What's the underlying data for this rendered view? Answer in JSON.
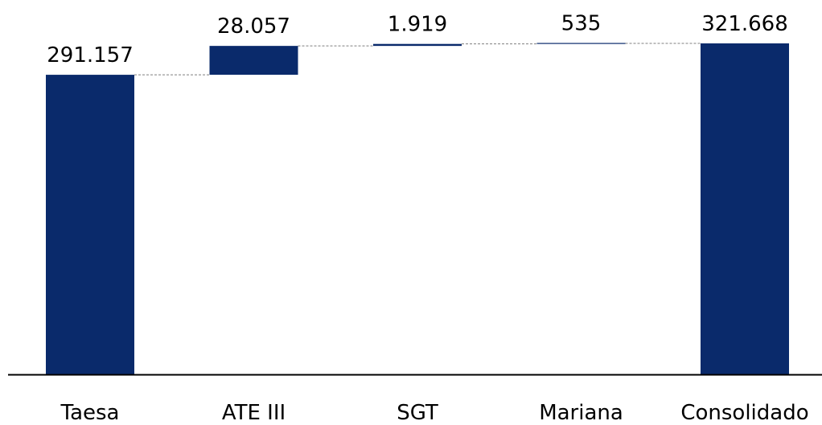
{
  "chart_data": {
    "type": "bar",
    "subtype": "waterfall",
    "categories": [
      "Taesa",
      "ATE III",
      "SGT",
      "Mariana",
      "Consolidado"
    ],
    "values": [
      291157,
      28057,
      1919,
      535,
      321668
    ],
    "value_labels": [
      "291.157",
      "28.057",
      "1.919",
      "535",
      "321.668"
    ],
    "bar_kinds": [
      "total",
      "increment",
      "increment",
      "increment",
      "total"
    ],
    "title": "",
    "xlabel": "",
    "ylabel": "",
    "ylim": [
      0,
      321668
    ],
    "grid": false,
    "legend": "none",
    "colors": {
      "bar": "#0a2a6b",
      "connector": "#7f7f7f",
      "axis": "#000000"
    }
  }
}
